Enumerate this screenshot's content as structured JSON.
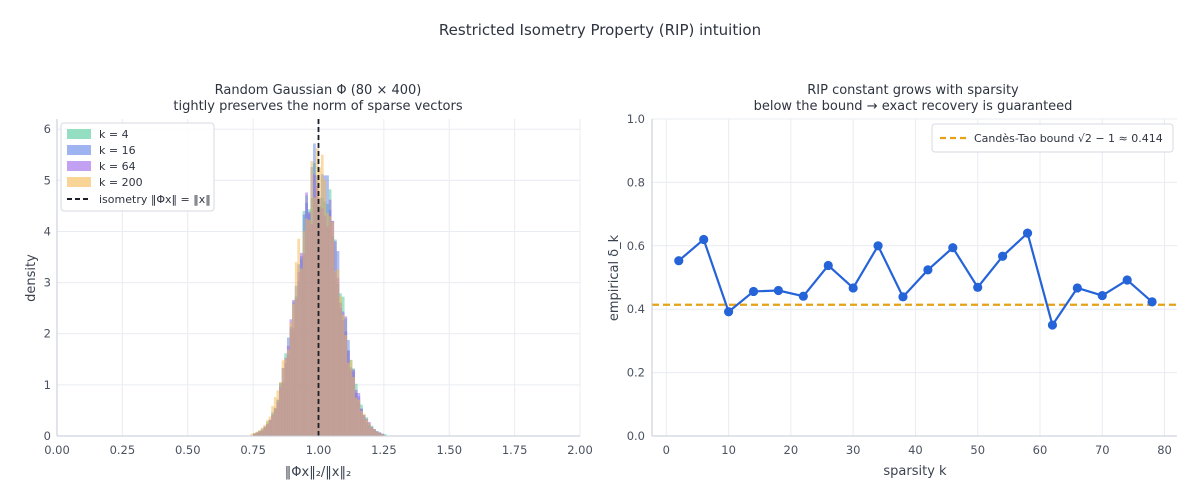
{
  "figure": {
    "title": "Restricted Isometry Property (RIP) intuition"
  },
  "colors": {
    "k4": "#4cc89a",
    "k16": "#5b82e6",
    "k64": "#9a62ea",
    "k200": "#f5b852",
    "line": "#2563d8",
    "bound": "#e6a119",
    "isometry": "#1b1f27"
  },
  "chart_data": [
    {
      "type": "histogram",
      "title_line1": "Random Gaussian Φ (80 × 400)",
      "title_line2": "tightly preserves the norm of sparse vectors",
      "xlabel": "‖Φx‖₂/‖x‖₂",
      "ylabel": "density",
      "xlim": [
        0.0,
        2.0
      ],
      "ylim": [
        0,
        6.2
      ],
      "xticks": [
        "0.00",
        "0.25",
        "0.50",
        "0.75",
        "1.00",
        "1.25",
        "1.50",
        "1.75",
        "2.00"
      ],
      "yticks": [
        "0",
        "1",
        "2",
        "3",
        "4",
        "5",
        "6"
      ],
      "grid": true,
      "legend_position": "top-left",
      "series": [
        {
          "name": "k = 4",
          "color_key": "k4",
          "mean": 1.0,
          "std": 0.08
        },
        {
          "name": "k = 16",
          "color_key": "k16",
          "mean": 1.0,
          "std": 0.078
        },
        {
          "name": "k = 64",
          "color_key": "k64",
          "mean": 1.0,
          "std": 0.079
        },
        {
          "name": "k = 200",
          "color_key": "k200",
          "mean": 0.995,
          "std": 0.08
        }
      ],
      "bin_width": 0.01,
      "reference_line": {
        "name": "isometry  ‖Φx‖ = ‖x‖",
        "x": 1.0
      }
    },
    {
      "type": "line",
      "title_line1": "RIP constant grows with sparsity",
      "title_line2": "below the bound → exact recovery is guaranteed",
      "xlabel": "sparsity k",
      "ylabel": "empirical δ_k",
      "xlim": [
        -2.3,
        82
      ],
      "ylim": [
        0.0,
        1.0
      ],
      "xticks": [
        "0",
        "10",
        "20",
        "30",
        "40",
        "50",
        "60",
        "70",
        "80"
      ],
      "yticks": [
        "0.0",
        "0.2",
        "0.4",
        "0.6",
        "0.8",
        "1.0"
      ],
      "grid": true,
      "legend_position": "top-right",
      "x": [
        2,
        6,
        10,
        14,
        18,
        22,
        26,
        30,
        34,
        38,
        42,
        46,
        50,
        54,
        58,
        62,
        66,
        70,
        74,
        78
      ],
      "y": [
        0.553,
        0.62,
        0.392,
        0.456,
        0.459,
        0.441,
        0.538,
        0.467,
        0.6,
        0.439,
        0.524,
        0.594,
        0.469,
        0.567,
        0.64,
        0.35,
        0.467,
        0.443,
        0.492,
        0.423
      ],
      "bound": {
        "name": "Candès-Tao bound  √2 − 1 ≈ 0.414",
        "value": 0.414
      }
    }
  ]
}
